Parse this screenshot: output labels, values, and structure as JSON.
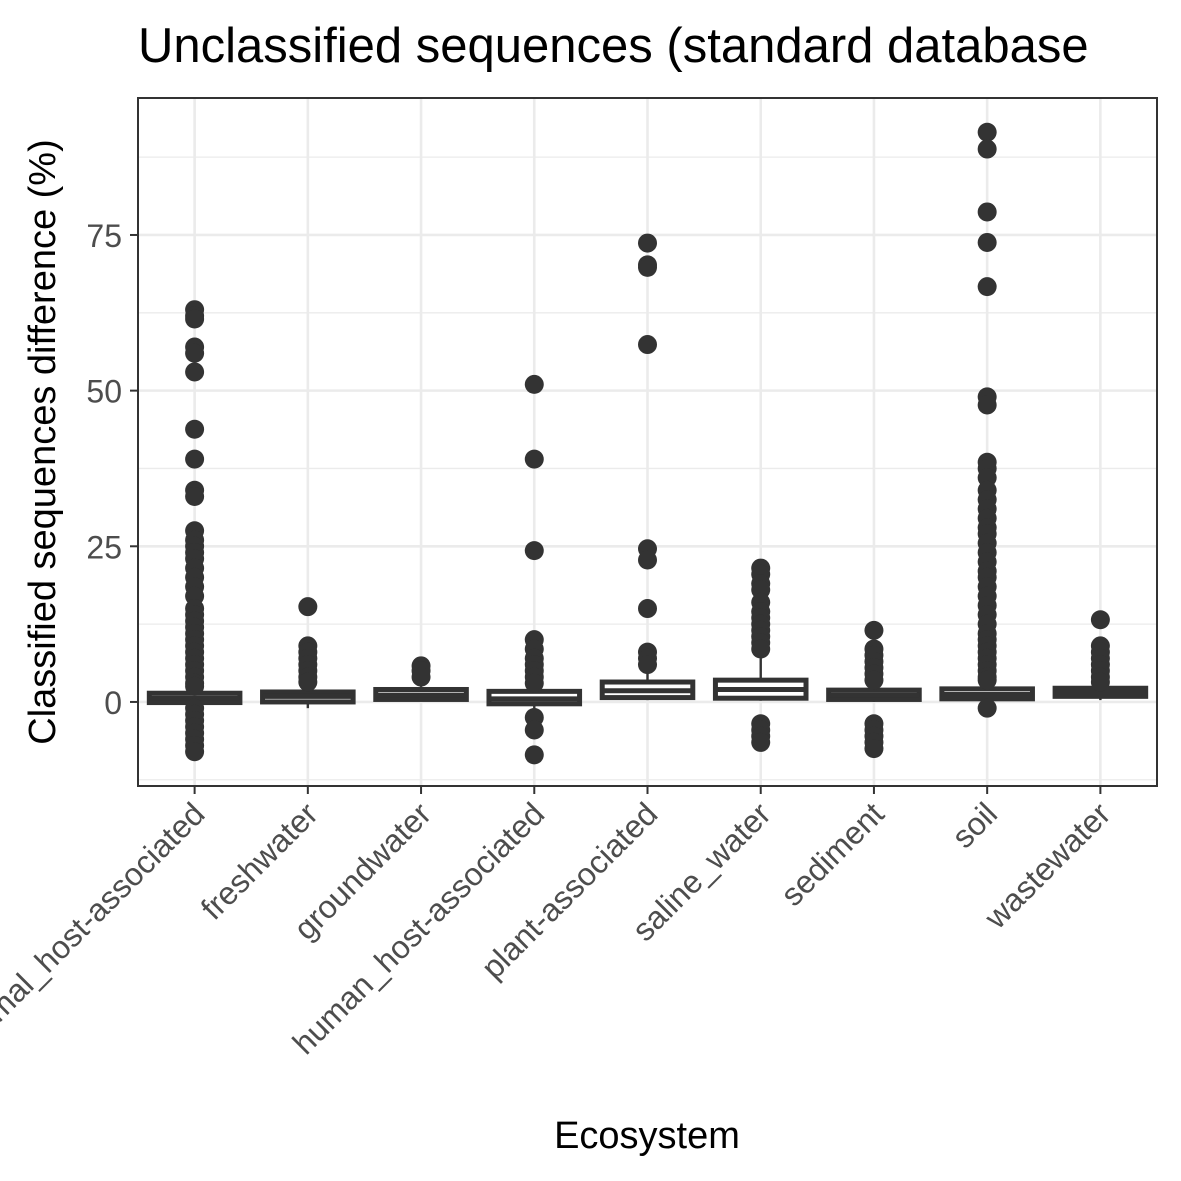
{
  "chart_data": {
    "type": "box",
    "title": "Unclassified sequences (standard database",
    "xlabel": "Ecosystem",
    "ylabel": "Classified sequences difference (%)",
    "ylim": [
      -13.5,
      97
    ],
    "yticks": [
      0,
      25,
      50,
      75
    ],
    "grid": true,
    "theme": "bw",
    "colors": {
      "mark": "#333333",
      "grid": "#ebebeb",
      "axis_text": "#4d4d4d",
      "border": "#333333"
    },
    "categories": [
      "animal_host-associated",
      "freshwater",
      "groundwater",
      "human_host-associated",
      "plant-associated",
      "saline_water",
      "sediment",
      "soil",
      "wastewater"
    ],
    "boxes": [
      {
        "q1": -0.1,
        "median": 0.6,
        "q3": 1.4,
        "whisker_low": -0.3,
        "whisker_high": 1.6,
        "outliers": [
          63.0,
          62.0,
          61.5,
          57.0,
          56.0,
          53.0,
          43.8,
          39.0,
          34.0,
          33.0,
          27.5,
          26.0,
          25.0,
          24.0,
          23.0,
          21.5,
          20.0,
          18.5,
          17.0,
          15.0,
          14.0,
          13.0,
          12.0,
          11.0,
          10.0,
          9.0,
          8.0,
          7.0,
          6.0,
          5.0,
          4.0,
          3.0,
          2.5,
          -1.0,
          -2.0,
          -3.0,
          -4.0,
          -5.0,
          -6.0,
          -7.0,
          -8.0
        ]
      },
      {
        "q1": 0.0,
        "median": 0.9,
        "q3": 1.6,
        "whisker_low": -1.0,
        "whisker_high": 2.5,
        "outliers": [
          15.3,
          9.0,
          8.0,
          7.0,
          6.0,
          5.0,
          4.0,
          3.2
        ]
      },
      {
        "q1": 0.4,
        "median": 1.1,
        "q3": 2.0,
        "whisker_low": 0.2,
        "whisker_high": 2.5,
        "outliers": [
          5.8,
          5.0,
          4.0
        ]
      },
      {
        "q1": -0.3,
        "median": 0.5,
        "q3": 1.7,
        "whisker_low": -1.0,
        "whisker_high": 2.3,
        "outliers": [
          51.0,
          39.0,
          24.3,
          10.0,
          8.5,
          7.0,
          6.0,
          5.0,
          4.0,
          3.0,
          -2.5,
          -4.5,
          -8.5
        ]
      },
      {
        "q1": 0.7,
        "median": 1.8,
        "q3": 3.2,
        "whisker_low": 0.3,
        "whisker_high": 4.5,
        "outliers": [
          73.7,
          70.2,
          69.8,
          57.4,
          24.6,
          22.8,
          15.0,
          8.0,
          7.0,
          6.0
        ]
      },
      {
        "q1": 0.6,
        "median": 2.0,
        "q3": 3.5,
        "whisker_low": 0.2,
        "whisker_high": 7.0,
        "outliers": [
          21.5,
          20.5,
          19.0,
          18.0,
          16.0,
          14.5,
          13.5,
          12.5,
          11.5,
          10.5,
          9.5,
          8.5,
          -3.5,
          -4.5,
          -5.5,
          -6.5
        ]
      },
      {
        "q1": 0.4,
        "median": 1.1,
        "q3": 1.9,
        "whisker_low": 0.0,
        "whisker_high": 2.6,
        "outliers": [
          11.5,
          8.5,
          7.5,
          6.5,
          5.5,
          4.5,
          3.5,
          -3.5,
          -4.5,
          -5.5,
          -6.5,
          -7.5
        ]
      },
      {
        "q1": 0.5,
        "median": 1.2,
        "q3": 2.1,
        "whisker_low": 0.0,
        "whisker_high": 2.9,
        "outliers": [
          91.5,
          88.8,
          78.7,
          73.8,
          66.7,
          49.0,
          47.7,
          38.5,
          37.5,
          36.0,
          34.0,
          32.5,
          31.0,
          29.5,
          28.0,
          27.0,
          25.5,
          24.0,
          22.5,
          21.0,
          20.0,
          18.5,
          17.0,
          15.5,
          14.0,
          12.5,
          11.0,
          10.0,
          9.0,
          8.0,
          7.0,
          6.0,
          5.0,
          4.0,
          3.5,
          -1.0
        ]
      },
      {
        "q1": 0.9,
        "median": 1.6,
        "q3": 2.2,
        "whisker_low": 0.3,
        "whisker_high": 2.9,
        "outliers": [
          13.2,
          9.0,
          8.0,
          7.0,
          6.0,
          5.0,
          4.0,
          3.2
        ]
      }
    ]
  }
}
